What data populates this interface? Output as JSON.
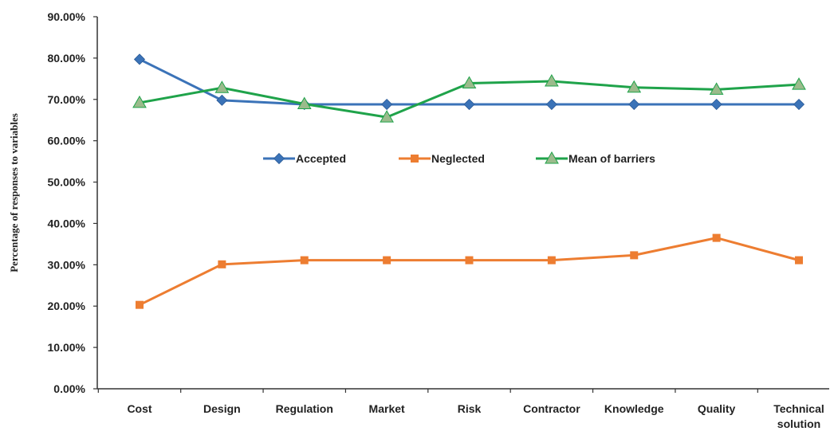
{
  "chart_data": {
    "type": "line",
    "title": "",
    "xlabel": "",
    "ylabel": "Percentage of responses to variables",
    "ylim": [
      0,
      90
    ],
    "yticks": [
      "0.00%",
      "10.00%",
      "20.00%",
      "30.00%",
      "40.00%",
      "50.00%",
      "60.00%",
      "70.00%",
      "80.00%",
      "90.00%"
    ],
    "categories": [
      [
        "Cost"
      ],
      [
        "Design"
      ],
      [
        "Regulation"
      ],
      [
        "Market"
      ],
      [
        "Risk"
      ],
      [
        "Contractor"
      ],
      [
        "Knowledge"
      ],
      [
        "Quality"
      ],
      [
        "Technical",
        "solution"
      ]
    ],
    "grid": false,
    "legend_position": "center",
    "series": [
      {
        "name": "Accepted",
        "color": "#3b73b8",
        "marker": "diamond",
        "values": [
          79.7,
          69.8,
          68.8,
          68.8,
          68.8,
          68.8,
          68.8,
          68.8,
          68.8
        ]
      },
      {
        "name": "Neglected",
        "color": "#ed7d31",
        "marker": "square",
        "values": [
          20.3,
          30.1,
          31.1,
          31.1,
          31.1,
          31.1,
          32.3,
          36.5,
          31.1
        ]
      },
      {
        "name": "Mean of barriers",
        "color": "#1fa34a",
        "marker_fill": "#9bbb8c",
        "marker": "triangle",
        "values": [
          69.2,
          72.8,
          68.9,
          65.7,
          73.9,
          74.4,
          72.9,
          72.4,
          73.6
        ]
      }
    ]
  }
}
